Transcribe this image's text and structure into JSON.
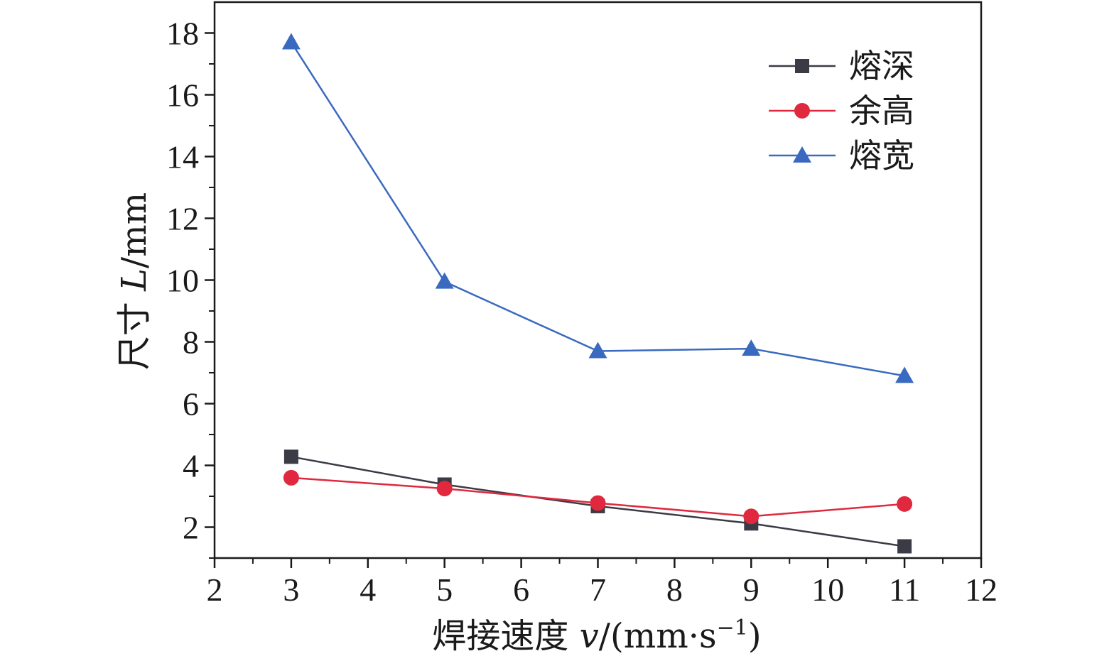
{
  "chart_data": {
    "type": "line",
    "xlabel_prefix": "焊接速度 ",
    "xlabel_var": "v",
    "xlabel_unit_pre": "/(mm·s",
    "xlabel_sup": "−1",
    "xlabel_unit_post": ")",
    "ylabel_prefix": "尺寸 ",
    "ylabel_var": "L",
    "ylabel_unit": "/mm",
    "x_ticks": [
      2,
      3,
      4,
      5,
      6,
      7,
      8,
      9,
      10,
      11,
      12
    ],
    "y_ticks": [
      2,
      4,
      6,
      8,
      10,
      12,
      14,
      16,
      18
    ],
    "xlim": [
      2,
      12
    ],
    "ylim": [
      1,
      19
    ],
    "grid": false,
    "legend_position": "top-right",
    "x": [
      3,
      5,
      7,
      9,
      11
    ],
    "series": [
      {
        "name": "熔深",
        "values": [
          4.28,
          3.38,
          2.68,
          2.12,
          1.38
        ],
        "color": "#3b3b45",
        "marker": "square"
      },
      {
        "name": "余高",
        "values": [
          3.6,
          3.25,
          2.78,
          2.35,
          2.75
        ],
        "color": "#e0283e",
        "marker": "circle"
      },
      {
        "name": "熔宽",
        "values": [
          17.7,
          9.95,
          7.7,
          7.78,
          6.9
        ],
        "color": "#3a6abf",
        "marker": "triangle"
      }
    ]
  }
}
